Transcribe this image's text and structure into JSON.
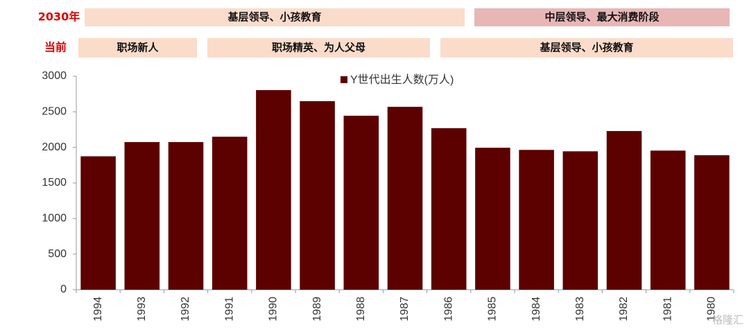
{
  "timeline": {
    "rows": [
      {
        "label": "2030年",
        "bands": [
          "基层领导、小孩教育",
          "中层领导、最大消费阶段"
        ]
      },
      {
        "label": "当前",
        "bands": [
          "职场新人",
          "职场精英、为人父母",
          "基层领导、小孩教育"
        ]
      }
    ]
  },
  "chart_data": {
    "type": "bar",
    "categories": [
      "1994",
      "1993",
      "1992",
      "1991",
      "1990",
      "1989",
      "1988",
      "1987",
      "1986",
      "1985",
      "1984",
      "1983",
      "1982",
      "1981",
      "1980"
    ],
    "series": [
      {
        "name": "Y世代出生人数(万人)",
        "color": "#5c0000",
        "values": [
          1875,
          2075,
          2075,
          2150,
          2805,
          2650,
          2445,
          2570,
          2270,
          1995,
          1965,
          1945,
          2230,
          1955,
          1890
        ]
      }
    ],
    "ylim": [
      0,
      3000
    ],
    "yticks": [
      0,
      500,
      1000,
      1500,
      2000,
      2500,
      3000
    ]
  },
  "watermark": "格隆汇"
}
